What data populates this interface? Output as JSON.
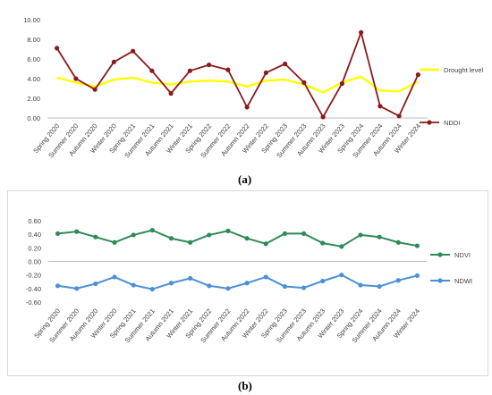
{
  "panels": {
    "a_label": "(a)",
    "b_label": "(b)"
  },
  "chart_data": [
    {
      "type": "line",
      "categories": [
        "Spring 2020",
        "Summer 2020",
        "Autumn 2020",
        "Winter 2020",
        "Spring 2021",
        "Summer 2021",
        "Autumn 2021",
        "Winter 2021",
        "Spring 2022",
        "Summer 2022",
        "Autumn 2022",
        "Winter 2022",
        "Spring 2023",
        "Summer 2023",
        "Autumn 2023",
        "Winter 2023",
        "Spring 2024",
        "Summer 2024",
        "Autumn 2024",
        "Winter 2024"
      ],
      "yticks": [
        "10.00",
        "8.00",
        "6.00",
        "4.00",
        "2.00",
        "0.00"
      ],
      "ylim": [
        0,
        10
      ],
      "series": [
        {
          "name": "Drought level",
          "color": "#ffff00",
          "marker": false,
          "values": [
            4.1,
            3.6,
            3.2,
            3.9,
            4.1,
            3.6,
            3.4,
            3.7,
            3.8,
            3.7,
            3.2,
            3.8,
            3.9,
            3.4,
            2.6,
            3.6,
            4.2,
            2.8,
            2.7,
            3.7
          ]
        },
        {
          "name": "NDDI",
          "color": "#8b1a1a",
          "marker": true,
          "values": [
            7.1,
            4.0,
            2.9,
            5.7,
            6.8,
            4.8,
            2.5,
            4.8,
            5.4,
            4.9,
            1.1,
            4.6,
            5.5,
            3.6,
            0.1,
            3.5,
            8.7,
            1.2,
            0.2,
            4.4
          ]
        }
      ],
      "legend": "right"
    },
    {
      "type": "line",
      "categories": [
        "Spring 2020",
        "Summer 2020",
        "Autumn 2020",
        "Winter 2020",
        "Spring 2021",
        "Summer 2021",
        "Autumn 2021",
        "Winter 2021",
        "Spring 2022",
        "Summer 2022",
        "Autumn 2022",
        "Winter 2022",
        "Spring 2023",
        "Summer 2023",
        "Autumn 2023",
        "Winter 2023",
        "Spring 2024",
        "Summer 2024",
        "Autumn 2024",
        "Winter 2024"
      ],
      "yticks": [
        "0.60",
        "0.40",
        "0.20",
        "0.00",
        "-0.20",
        "-0.40",
        "-0.60"
      ],
      "ylim": [
        -0.6,
        0.6
      ],
      "series": [
        {
          "name": "NDVI",
          "color": "#2e8b57",
          "marker": true,
          "values": [
            0.41,
            0.44,
            0.36,
            0.28,
            0.39,
            0.46,
            0.34,
            0.28,
            0.39,
            0.45,
            0.34,
            0.26,
            0.41,
            0.41,
            0.27,
            0.22,
            0.39,
            0.36,
            0.28,
            0.23
          ]
        },
        {
          "name": "NDWI",
          "color": "#4a90d9",
          "marker": true,
          "values": [
            -0.36,
            -0.4,
            -0.33,
            -0.23,
            -0.35,
            -0.41,
            -0.32,
            -0.25,
            -0.36,
            -0.4,
            -0.32,
            -0.23,
            -0.37,
            -0.39,
            -0.29,
            -0.2,
            -0.35,
            -0.37,
            -0.28,
            -0.21
          ]
        }
      ],
      "legend": "right"
    }
  ]
}
